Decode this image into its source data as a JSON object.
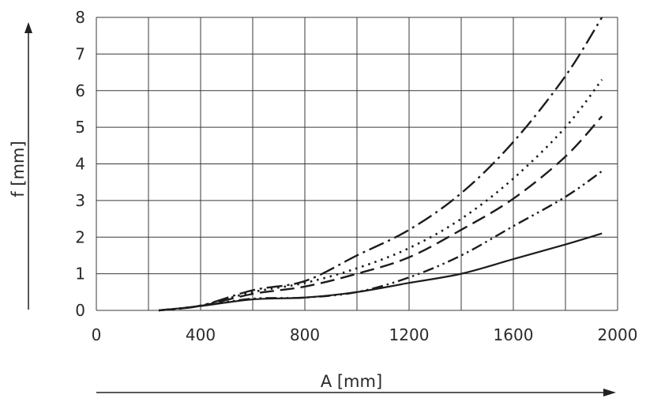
{
  "chart_data": {
    "type": "line",
    "xlabel": "A [mm]",
    "ylabel": "f [mm]",
    "xlim": [
      0,
      2000
    ],
    "ylim": [
      0,
      8
    ],
    "x_ticks": [
      "0",
      "400",
      "800",
      "1200",
      "1600",
      "2000"
    ],
    "y_ticks": [
      "0",
      "1",
      "2",
      "3",
      "4",
      "5",
      "6",
      "7",
      "8"
    ],
    "grid": true,
    "legend": "none",
    "series": [
      {
        "style": "solid",
        "x": [
          240,
          400,
          600,
          800,
          1000,
          1200,
          1400,
          1600,
          1800,
          1940
        ],
        "y": [
          0.0,
          0.12,
          0.3,
          0.35,
          0.5,
          0.75,
          1.0,
          1.4,
          1.8,
          2.1
        ]
      },
      {
        "style": "dash-dot-dot",
        "x": [
          240,
          400,
          600,
          800,
          1000,
          1200,
          1400,
          1600,
          1800,
          1940
        ],
        "y": [
          0.0,
          0.12,
          0.32,
          0.35,
          0.5,
          0.9,
          1.5,
          2.3,
          3.1,
          3.8
        ]
      },
      {
        "style": "dashed",
        "x": [
          240,
          400,
          600,
          800,
          1000,
          1200,
          1400,
          1600,
          1800,
          1940
        ],
        "y": [
          0.0,
          0.12,
          0.45,
          0.65,
          1.0,
          1.45,
          2.2,
          3.05,
          4.2,
          5.3
        ]
      },
      {
        "style": "dotted",
        "x": [
          240,
          400,
          600,
          800,
          1000,
          1200,
          1400,
          1600,
          1800,
          1940
        ],
        "y": [
          0.0,
          0.13,
          0.5,
          0.75,
          1.15,
          1.7,
          2.5,
          3.6,
          5.0,
          6.3
        ]
      },
      {
        "style": "dash-dot",
        "x": [
          240,
          400,
          600,
          800,
          1000,
          1200,
          1400,
          1600,
          1800,
          1940
        ],
        "y": [
          0.0,
          0.13,
          0.55,
          0.8,
          1.5,
          2.2,
          3.2,
          4.6,
          6.4,
          8.0
        ]
      }
    ]
  }
}
